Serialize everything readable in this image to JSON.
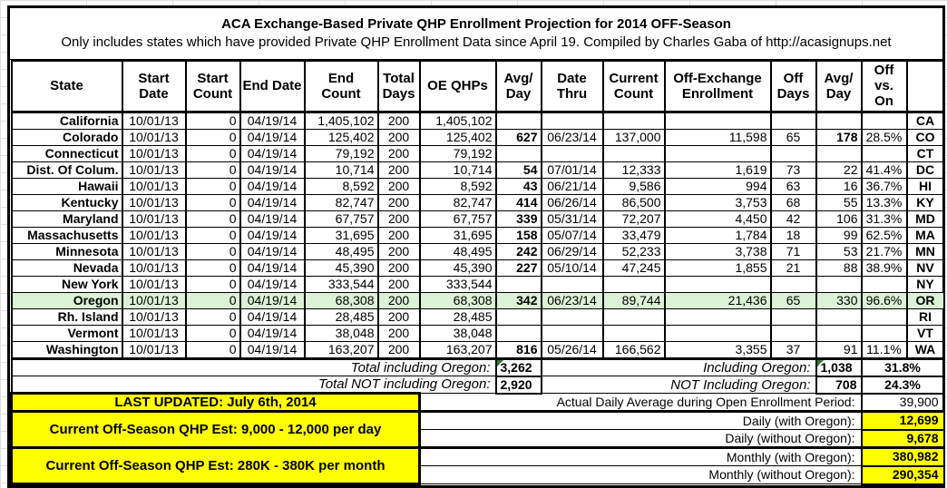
{
  "title": "ACA Exchange-Based Private QHP Enrollment Projection for 2014 OFF-Season",
  "subtitle": "Only includes states which have provided Private QHP Enrollment Data since April 19. Compiled by Charles Gaba of http://acasignups.net",
  "columns": [
    "State",
    "Start Date",
    "Start Count",
    "End Date",
    "End Count",
    "Total Days",
    "OE QHPs",
    "Avg/ Day",
    "Date Thru",
    "Current Count",
    "Off-Exchange Enrollment",
    "Off Days",
    "Avg/ Day",
    "Off vs. On",
    ""
  ],
  "rows": [
    {
      "state": "California",
      "start_date": "10/01/13",
      "start_count": "0",
      "end_date": "04/19/14",
      "end_count": "1,405,102",
      "total_days": "200",
      "oe_qhps": "1,405,102",
      "avg_day": "",
      "date_thru": "",
      "current_count": "",
      "off_exchange": "",
      "off_days": "",
      "off_avg_day": "",
      "off_vs_on": "",
      "abbr": "CA",
      "highlight": false,
      "bold_off_avg": false
    },
    {
      "state": "Colorado",
      "start_date": "10/01/13",
      "start_count": "0",
      "end_date": "04/19/14",
      "end_count": "125,402",
      "total_days": "200",
      "oe_qhps": "125,402",
      "avg_day": "627",
      "date_thru": "06/23/14",
      "current_count": "137,000",
      "off_exchange": "11,598",
      "off_days": "65",
      "off_avg_day": "178",
      "off_vs_on": "28.5%",
      "abbr": "CO",
      "highlight": false,
      "bold_off_avg": true
    },
    {
      "state": "Connecticut",
      "start_date": "10/01/13",
      "start_count": "0",
      "end_date": "04/19/14",
      "end_count": "79,192",
      "total_days": "200",
      "oe_qhps": "79,192",
      "avg_day": "",
      "date_thru": "",
      "current_count": "",
      "off_exchange": "",
      "off_days": "",
      "off_avg_day": "",
      "off_vs_on": "",
      "abbr": "CT",
      "highlight": false,
      "bold_off_avg": false
    },
    {
      "state": "Dist. Of Colum.",
      "start_date": "10/01/13",
      "start_count": "0",
      "end_date": "04/19/14",
      "end_count": "10,714",
      "total_days": "200",
      "oe_qhps": "10,714",
      "avg_day": "54",
      "date_thru": "07/01/14",
      "current_count": "12,333",
      "off_exchange": "1,619",
      "off_days": "73",
      "off_avg_day": "22",
      "off_vs_on": "41.4%",
      "abbr": "DC",
      "highlight": false,
      "bold_off_avg": false
    },
    {
      "state": "Hawaii",
      "start_date": "10/01/13",
      "start_count": "0",
      "end_date": "04/19/14",
      "end_count": "8,592",
      "total_days": "200",
      "oe_qhps": "8,592",
      "avg_day": "43",
      "date_thru": "06/21/14",
      "current_count": "9,586",
      "off_exchange": "994",
      "off_days": "63",
      "off_avg_day": "16",
      "off_vs_on": "36.7%",
      "abbr": "HI",
      "highlight": false,
      "bold_off_avg": false
    },
    {
      "state": "Kentucky",
      "start_date": "10/01/13",
      "start_count": "0",
      "end_date": "04/19/14",
      "end_count": "82,747",
      "total_days": "200",
      "oe_qhps": "82,747",
      "avg_day": "414",
      "date_thru": "06/26/14",
      "current_count": "86,500",
      "off_exchange": "3,753",
      "off_days": "68",
      "off_avg_day": "55",
      "off_vs_on": "13.3%",
      "abbr": "KY",
      "highlight": false,
      "bold_off_avg": false
    },
    {
      "state": "Maryland",
      "start_date": "10/01/13",
      "start_count": "0",
      "end_date": "04/19/14",
      "end_count": "67,757",
      "total_days": "200",
      "oe_qhps": "67,757",
      "avg_day": "339",
      "date_thru": "05/31/14",
      "current_count": "72,207",
      "off_exchange": "4,450",
      "off_days": "42",
      "off_avg_day": "106",
      "off_vs_on": "31.3%",
      "abbr": "MD",
      "highlight": false,
      "bold_off_avg": false
    },
    {
      "state": "Massachusetts",
      "start_date": "10/01/13",
      "start_count": "0",
      "end_date": "04/19/14",
      "end_count": "31,695",
      "total_days": "200",
      "oe_qhps": "31,695",
      "avg_day": "158",
      "date_thru": "05/07/14",
      "current_count": "33,479",
      "off_exchange": "1,784",
      "off_days": "18",
      "off_avg_day": "99",
      "off_vs_on": "62.5%",
      "abbr": "MA",
      "highlight": false,
      "bold_off_avg": false
    },
    {
      "state": "Minnesota",
      "start_date": "10/01/13",
      "start_count": "0",
      "end_date": "04/19/14",
      "end_count": "48,495",
      "total_days": "200",
      "oe_qhps": "48,495",
      "avg_day": "242",
      "date_thru": "06/29/14",
      "current_count": "52,233",
      "off_exchange": "3,738",
      "off_days": "71",
      "off_avg_day": "53",
      "off_vs_on": "21.7%",
      "abbr": "MN",
      "highlight": false,
      "bold_off_avg": false
    },
    {
      "state": "Nevada",
      "start_date": "10/01/13",
      "start_count": "0",
      "end_date": "04/19/14",
      "end_count": "45,390",
      "total_days": "200",
      "oe_qhps": "45,390",
      "avg_day": "227",
      "date_thru": "05/10/14",
      "current_count": "47,245",
      "off_exchange": "1,855",
      "off_days": "21",
      "off_avg_day": "88",
      "off_vs_on": "38.9%",
      "abbr": "NV",
      "highlight": false,
      "bold_off_avg": false
    },
    {
      "state": "New York",
      "start_date": "10/01/13",
      "start_count": "0",
      "end_date": "04/19/14",
      "end_count": "333,544",
      "total_days": "200",
      "oe_qhps": "333,544",
      "avg_day": "",
      "date_thru": "",
      "current_count": "",
      "off_exchange": "",
      "off_days": "",
      "off_avg_day": "",
      "off_vs_on": "",
      "abbr": "NY",
      "highlight": false,
      "bold_off_avg": false
    },
    {
      "state": "Oregon",
      "start_date": "10/01/13",
      "start_count": "0",
      "end_date": "04/19/14",
      "end_count": "68,308",
      "total_days": "200",
      "oe_qhps": "68,308",
      "avg_day": "342",
      "date_thru": "06/23/14",
      "current_count": "89,744",
      "off_exchange": "21,436",
      "off_days": "65",
      "off_avg_day": "330",
      "off_vs_on": "96.6%",
      "abbr": "OR",
      "highlight": true,
      "bold_off_avg": false
    },
    {
      "state": "Rh. Island",
      "start_date": "10/01/13",
      "start_count": "0",
      "end_date": "04/19/14",
      "end_count": "28,485",
      "total_days": "200",
      "oe_qhps": "28,485",
      "avg_day": "",
      "date_thru": "",
      "current_count": "",
      "off_exchange": "",
      "off_days": "",
      "off_avg_day": "",
      "off_vs_on": "",
      "abbr": "RI",
      "highlight": false,
      "bold_off_avg": false
    },
    {
      "state": "Vermont",
      "start_date": "10/01/13",
      "start_count": "0",
      "end_date": "04/19/14",
      "end_count": "38,048",
      "total_days": "200",
      "oe_qhps": "38,048",
      "avg_day": "",
      "date_thru": "",
      "current_count": "",
      "off_exchange": "",
      "off_days": "",
      "off_avg_day": "",
      "off_vs_on": "",
      "abbr": "VT",
      "highlight": false,
      "bold_off_avg": false
    },
    {
      "state": "Washington",
      "start_date": "10/01/13",
      "start_count": "0",
      "end_date": "04/19/14",
      "end_count": "163,207",
      "total_days": "200",
      "oe_qhps": "163,207",
      "avg_day": "816",
      "date_thru": "05/26/14",
      "current_count": "166,562",
      "off_exchange": "3,355",
      "off_days": "37",
      "off_avg_day": "91",
      "off_vs_on": "11.1%",
      "abbr": "WA",
      "highlight": false,
      "bold_off_avg": false
    }
  ],
  "totals": {
    "including_label": "Total including Oregon:",
    "including_value": "3,262",
    "not_including_label": "Total NOT including Oregon:",
    "not_including_value": "2,920",
    "off_including_label": "Including Oregon:",
    "off_including_value": "1,038",
    "off_including_pct": "31.8%",
    "off_not_including_label": "NOT Including Oregon:",
    "off_not_including_value": "708",
    "off_not_including_pct": "24.3%"
  },
  "footer": {
    "last_updated": "LAST UPDATED: July 6th, 2014",
    "daily_estimate": "Current Off-Season QHP Est: 9,000 - 12,000 per day",
    "monthly_estimate": "Current Off-Season QHP Est: 280K - 380K per month",
    "stats": [
      {
        "label": "Actual Daily Average during Open Enrollment Period:",
        "value": "39,900",
        "highlight": false
      },
      {
        "label": "Daily (with Oregon):",
        "value": "12,699",
        "highlight": true
      },
      {
        "label": "Daily (without Oregon):",
        "value": "9,678",
        "highlight": true
      },
      {
        "label": "Monthly (with Oregon):",
        "value": "380,982",
        "highlight": true
      },
      {
        "label": "Monthly (without Oregon):",
        "value": "290,354",
        "highlight": true
      }
    ]
  },
  "colors": {
    "highlight_row_green": "#dcf2d6",
    "accent_yellow": "#ffff00",
    "comment_marker_green": "#2e7d32",
    "border_black": "#000000"
  }
}
